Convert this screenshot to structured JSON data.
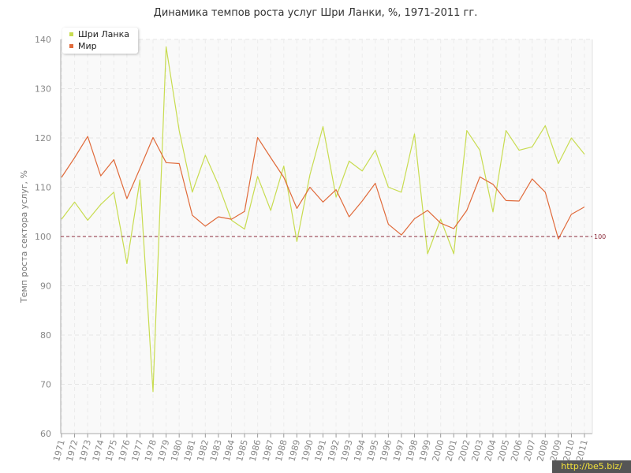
{
  "chart_data": {
    "type": "line",
    "title": "Динамика темпов роста услуг Шри Ланки, %, 1971-2011 гг.",
    "ylabel": "Темп роста сектора услуг, %",
    "xlabel": "",
    "ylim": [
      60,
      140
    ],
    "yticks": [
      "60",
      "70",
      "80",
      "90",
      "100",
      "110",
      "120",
      "130",
      "140"
    ],
    "x": [
      "1971",
      "1972",
      "1973",
      "1974",
      "1975",
      "1976",
      "1977",
      "1978",
      "1979",
      "1980",
      "1981",
      "1982",
      "1983",
      "1984",
      "1985",
      "1986",
      "1987",
      "1988",
      "1989",
      "1990",
      "1991",
      "1992",
      "1993",
      "1994",
      "1995",
      "1996",
      "1997",
      "1998",
      "1999",
      "2000",
      "2001",
      "2002",
      "2003",
      "2004",
      "2005",
      "2006",
      "2007",
      "2008",
      "2009",
      "2010",
      "2011"
    ],
    "series": [
      {
        "name": "Шри Ланка",
        "color": "#c8dc50",
        "values": [
          103.5,
          107.0,
          103.3,
          106.5,
          109.0,
          94.5,
          111.5,
          68.5,
          138.5,
          121.5,
          109.0,
          116.5,
          110.5,
          103.3,
          101.5,
          112.2,
          105.3,
          114.3,
          99.0,
          112.5,
          122.3,
          108.0,
          115.3,
          113.3,
          117.5,
          110.0,
          109.0,
          120.8,
          96.5,
          103.5,
          96.5,
          121.5,
          117.5,
          105.0,
          121.5,
          117.5,
          118.2,
          122.5,
          114.8,
          120.0,
          116.7
        ]
      },
      {
        "name": "Мир",
        "color": "#e06a3a",
        "values": [
          112.0,
          116.0,
          120.3,
          112.3,
          115.6,
          107.7,
          113.8,
          120.1,
          115.0,
          114.8,
          104.3,
          102.1,
          104.0,
          103.5,
          105.1,
          120.1,
          116.0,
          112.0,
          105.7,
          110.0,
          107.0,
          109.5,
          104.0,
          107.2,
          110.8,
          102.5,
          100.3,
          103.6,
          105.3,
          102.7,
          101.6,
          105.3,
          112.1,
          110.6,
          107.3,
          107.2,
          111.7,
          109.0,
          99.5,
          104.5,
          106.0
        ]
      }
    ],
    "reference_line": {
      "value": 100,
      "label": "100",
      "color": "#8b2a3a"
    },
    "grid": true,
    "legend_position": "top-left"
  },
  "watermark": "http://be5.biz/"
}
